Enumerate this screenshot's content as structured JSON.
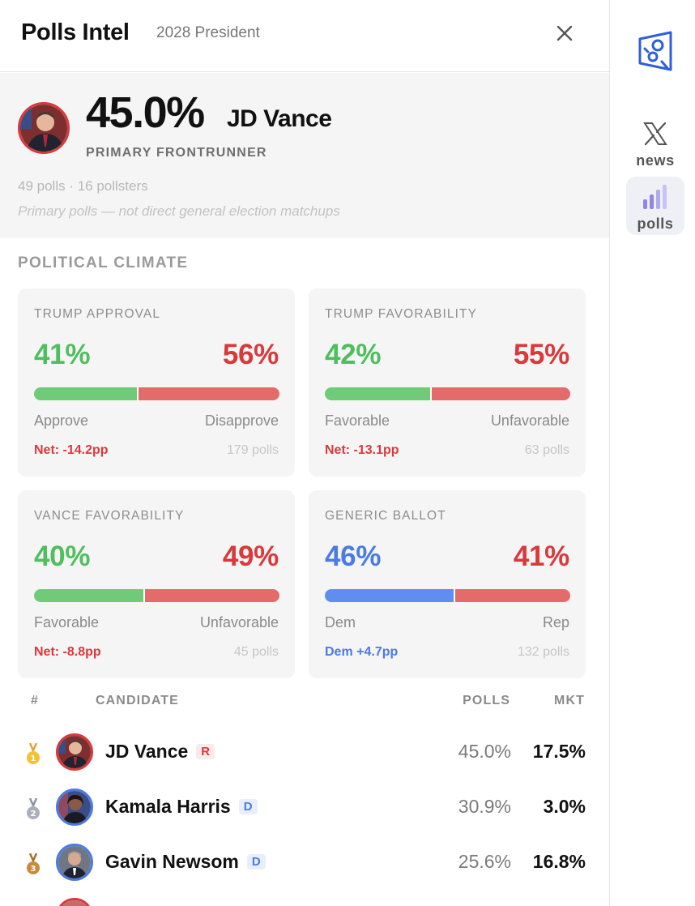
{
  "header": {
    "title": "Polls Intel",
    "race": "2028 President"
  },
  "frontrunner": {
    "pct": "45.0%",
    "name": "JD Vance",
    "role": "PRIMARY FRONTRUNNER",
    "count": "49 polls · 16 pollsters",
    "note": "Primary polls — not direct general election matchups"
  },
  "climate": {
    "title": "POLITICAL CLIMATE",
    "cards": [
      {
        "title": "TRUMP APPROVAL",
        "left_value": "41%",
        "right_value": "56%",
        "left_share": 41,
        "right_share": 56,
        "left_label": "Approve",
        "right_label": "Disapprove",
        "net": "Net: -14.2pp",
        "polls": "179 polls",
        "left_color": "#6fcb78",
        "right_color": "#e36b69"
      },
      {
        "title": "TRUMP FAVORABILITY",
        "left_value": "42%",
        "right_value": "55%",
        "left_share": 42,
        "right_share": 55,
        "left_label": "Favorable",
        "right_label": "Unfavorable",
        "net": "Net: -13.1pp",
        "polls": "63 polls",
        "left_color": "#6fcb78",
        "right_color": "#e36b69"
      },
      {
        "title": "VANCE FAVORABILITY",
        "left_value": "40%",
        "right_value": "49%",
        "left_share": 40,
        "right_share": 49,
        "left_label": "Favorable",
        "right_label": "Unfavorable",
        "net": "Net: -8.8pp",
        "polls": "45 polls",
        "left_color": "#6fcb78",
        "right_color": "#e36b69"
      },
      {
        "title": "GENERIC BALLOT",
        "left_value": "46%",
        "right_value": "41%",
        "left_share": 46,
        "right_share": 41,
        "left_label": "Dem",
        "right_label": "Rep",
        "net": "Dem +4.7pp",
        "polls": "132 polls",
        "left_color": "#5f8ef0",
        "right_color": "#e36b69"
      }
    ]
  },
  "table": {
    "headers": {
      "rank": "#",
      "candidate": "CANDIDATE",
      "polls": "POLLS",
      "mkt": "MKT"
    },
    "rows": [
      {
        "rank": "1",
        "name": "JD Vance",
        "party": "R",
        "polls": "45.0%",
        "mkt": "17.5%",
        "medal": "gold"
      },
      {
        "rank": "2",
        "name": "Kamala Harris",
        "party": "D",
        "polls": "30.9%",
        "mkt": "3.0%",
        "medal": "silver"
      },
      {
        "rank": "3",
        "name": "Gavin Newsom",
        "party": "D",
        "polls": "25.6%",
        "mkt": "16.8%",
        "medal": "bronze"
      }
    ]
  },
  "rail": {
    "items": [
      {
        "label": "news",
        "icon": "x-logo-icon"
      },
      {
        "label": "polls",
        "icon": "bar-chart-icon",
        "active": true
      }
    ]
  },
  "colors": {
    "green": "#4fbf5d",
    "red": "#d9393b",
    "blue": "#4a7ae3",
    "rep_ring": "#d9393b",
    "dem_ring": "#4a7ae3",
    "gold": "#f2c230",
    "silver": "#a9b0bb",
    "bronze": "#c98a3c"
  }
}
